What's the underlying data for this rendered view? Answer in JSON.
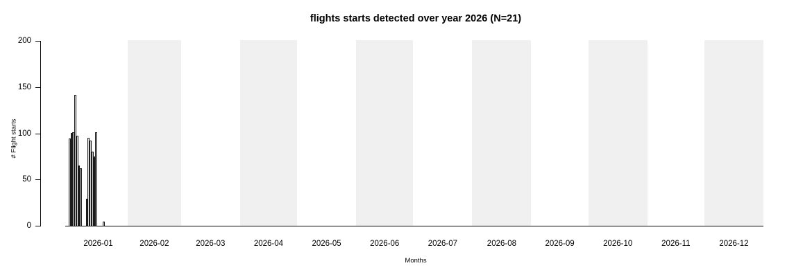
{
  "chart_data": {
    "type": "bar",
    "title": "flights starts detected over year 2026 (N=21)",
    "xlabel": "Months",
    "ylabel": "# Flight starts",
    "ylim": [
      0,
      200
    ],
    "y_ticks": [
      0,
      50,
      100,
      150,
      200
    ],
    "grid": false,
    "legend": null,
    "bar_unit": "day",
    "shading_note": "alternate months shaded",
    "months": [
      {
        "label": "2026-01",
        "days": 31,
        "shaded": false
      },
      {
        "label": "2026-02",
        "days": 28,
        "shaded": true
      },
      {
        "label": "2026-03",
        "days": 31,
        "shaded": false
      },
      {
        "label": "2026-04",
        "days": 30,
        "shaded": true
      },
      {
        "label": "2026-05",
        "days": 31,
        "shaded": false
      },
      {
        "label": "2026-06",
        "days": 30,
        "shaded": true
      },
      {
        "label": "2026-07",
        "days": 31,
        "shaded": false
      },
      {
        "label": "2026-08",
        "days": 31,
        "shaded": true
      },
      {
        "label": "2026-09",
        "days": 30,
        "shaded": false
      },
      {
        "label": "2026-10",
        "days": 31,
        "shaded": true
      },
      {
        "label": "2026-11",
        "days": 30,
        "shaded": false
      },
      {
        "label": "2026-12",
        "days": 31,
        "shaded": true
      }
    ],
    "bars": [
      {
        "date": "2026-01-01",
        "value": 95
      },
      {
        "date": "2026-01-02",
        "value": 101
      },
      {
        "date": "2026-01-03",
        "value": 102
      },
      {
        "date": "2026-01-04",
        "value": 142
      },
      {
        "date": "2026-01-05",
        "value": 98
      },
      {
        "date": "2026-01-06",
        "value": 66
      },
      {
        "date": "2026-01-07",
        "value": 63
      },
      {
        "date": "2026-01-10",
        "value": 30
      },
      {
        "date": "2026-01-11",
        "value": 96
      },
      {
        "date": "2026-01-12",
        "value": 93
      },
      {
        "date": "2026-01-13",
        "value": 81
      },
      {
        "date": "2026-01-14",
        "value": 76
      },
      {
        "date": "2026-01-15",
        "value": 102
      },
      {
        "date": "2026-01-19",
        "value": 5
      }
    ],
    "colors": {
      "background": "#ffffff",
      "band": "#f0f0f0",
      "bar_fill": "#dedede",
      "bar_border": "#1c1c1c",
      "axis": "#000000",
      "text": "#000000"
    }
  }
}
